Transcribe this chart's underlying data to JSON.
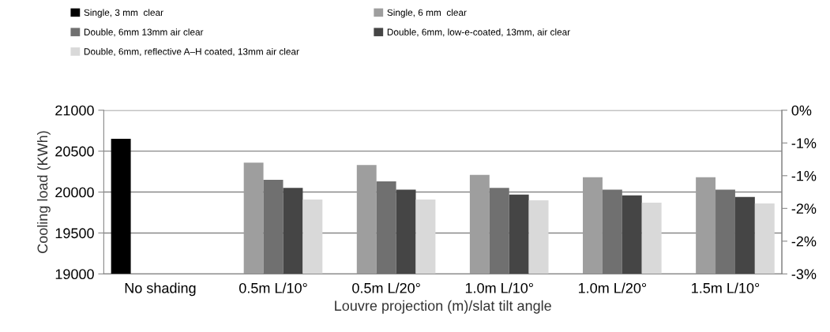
{
  "chart_data": {
    "type": "bar",
    "xlabel": "Louvre projection (m)/slat tilt angle",
    "ylabel": "Cooling load (KWh)",
    "categories": [
      "No shading",
      "0.5m L/10°",
      "0.5m L/20°",
      "1.0m L/10°",
      "1.0m L/20°",
      "1.5m L/10°"
    ],
    "series": [
      {
        "name": "Single, 3 mm  clear",
        "color": "#000000",
        "values": [
          20650,
          null,
          null,
          null,
          null,
          null
        ]
      },
      {
        "name": "Single, 6 mm  clear",
        "color": "#9e9e9e",
        "values": [
          null,
          20360,
          20330,
          20210,
          20180,
          20180
        ]
      },
      {
        "name": "Double, 6mm 13mm air clear",
        "color": "#707070",
        "values": [
          null,
          20150,
          20130,
          20050,
          20030,
          20030
        ]
      },
      {
        "name": "Double, 6mm, low-e-coated, 13mm, air clear",
        "color": "#454545",
        "values": [
          null,
          20050,
          20030,
          19970,
          19960,
          19940
        ]
      },
      {
        "name": "Double, 6mm, reflective A–H coated, 13mm air clear",
        "color": "#d9d9d9",
        "values": [
          null,
          19910,
          19910,
          19900,
          19870,
          19860
        ]
      }
    ],
    "ylim": [
      19000,
      21000
    ],
    "yticks": [
      19000,
      19500,
      20000,
      20500,
      21000
    ],
    "y2lim": [
      -3,
      0
    ],
    "y2ticks": [
      {
        "value": -3,
        "label": "-3%"
      },
      {
        "value": -2.4,
        "label": "-2%"
      },
      {
        "value": -1.8,
        "label": "-2%"
      },
      {
        "value": -1.2,
        "label": "-1%"
      },
      {
        "value": -0.6,
        "label": "-1%"
      },
      {
        "value": 0,
        "label": "0%"
      }
    ],
    "grid": "y",
    "legend": "top"
  }
}
